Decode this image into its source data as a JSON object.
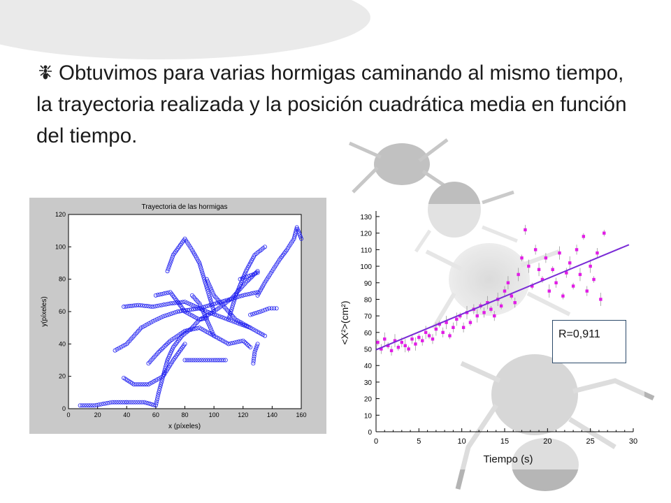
{
  "slide": {
    "headline": "Obtuvimos para varias hormigas caminando al mismo tiempo, la trayectoria realizada y la posición cuadrática media en función del tiempo.",
    "r_box": "R=0,911"
  },
  "colors": {
    "trajectory_markers": "#1f1ff0",
    "msd_markers": "#e21ce6",
    "fit_line": "#7a2bd6",
    "error_bars": "#9a9a9a",
    "traj_frame": "#c9c9c9"
  },
  "icons": [
    "ant-bullet-icon",
    "ant-background-icon"
  ],
  "chart_data": [
    {
      "type": "scatter",
      "title": "Trayectoria de las hormigas",
      "xlabel": "x (píxeles)",
      "ylabel": "y(píxeles)",
      "xlim": [
        0,
        160
      ],
      "ylim": [
        0,
        120
      ],
      "xticks": [
        0,
        20,
        40,
        60,
        80,
        100,
        120,
        140,
        160
      ],
      "yticks": [
        0,
        20,
        40,
        60,
        80,
        100,
        120
      ],
      "grid": false,
      "marker": "open-circle",
      "tracks": [
        {
          "x": [
            8,
            18,
            30,
            40
          ],
          "y": [
            2,
            2,
            4,
            4
          ]
        },
        {
          "x": [
            40,
            52,
            60,
            62,
            65,
            68,
            72,
            78,
            85,
            90,
            95
          ],
          "y": [
            4,
            4,
            2,
            10,
            20,
            30,
            38,
            45,
            50,
            55,
            56
          ]
        },
        {
          "x": [
            38,
            48,
            58,
            70,
            80,
            95,
            110,
            125
          ],
          "y": [
            63,
            64,
            63,
            65,
            66,
            60,
            55,
            50
          ]
        },
        {
          "x": [
            32,
            40,
            45,
            50,
            58,
            65,
            75,
            90,
            105,
            120,
            130
          ],
          "y": [
            36,
            40,
            45,
            50,
            54,
            57,
            60,
            62,
            66,
            70,
            72
          ]
        },
        {
          "x": [
            38,
            45,
            55,
            65,
            72,
            80
          ],
          "y": [
            19,
            15,
            15,
            20,
            30,
            40
          ]
        },
        {
          "x": [
            68,
            70,
            72,
            76,
            80,
            85,
            90,
            95,
            100
          ],
          "y": [
            85,
            90,
            95,
            100,
            105,
            98,
            90,
            75,
            60
          ]
        },
        {
          "x": [
            55,
            62,
            70,
            80,
            90,
            100,
            110,
            120,
            125
          ],
          "y": [
            28,
            35,
            42,
            48,
            50,
            45,
            40,
            42,
            38
          ]
        },
        {
          "x": [
            60,
            70,
            80,
            90,
            100,
            112,
            122,
            130
          ],
          "y": [
            70,
            72,
            60,
            55,
            60,
            68,
            78,
            85
          ]
        },
        {
          "x": [
            95,
            100,
            108,
            115,
            125,
            135
          ],
          "y": [
            80,
            70,
            62,
            55,
            50,
            45
          ]
        },
        {
          "x": [
            80,
            90,
            100,
            108
          ],
          "y": [
            30,
            30,
            30,
            30
          ]
        },
        {
          "x": [
            110,
            115,
            122,
            128,
            135
          ],
          "y": [
            55,
            70,
            85,
            95,
            100
          ]
        },
        {
          "x": [
            130,
            135,
            140,
            145,
            150,
            155,
            157,
            160
          ],
          "y": [
            70,
            78,
            85,
            92,
            98,
            105,
            112,
            105
          ]
        },
        {
          "x": [
            125,
            132,
            138,
            143
          ],
          "y": [
            58,
            60,
            62,
            62
          ]
        },
        {
          "x": [
            130,
            128,
            127
          ],
          "y": [
            40,
            35,
            28
          ]
        },
        {
          "x": [
            118,
            124,
            130
          ],
          "y": [
            80,
            82,
            84
          ]
        },
        {
          "x": [
            85,
            90,
            95,
            100
          ],
          "y": [
            70,
            65,
            55,
            45
          ]
        }
      ]
    },
    {
      "type": "scatter",
      "title": "",
      "xlabel": "Tiempo (s)",
      "ylabel": "<X²>(cm²)",
      "xlim": [
        0,
        30
      ],
      "ylim": [
        0,
        130
      ],
      "xticks": [
        0,
        5,
        10,
        15,
        20,
        25,
        30
      ],
      "yticks": [
        0,
        10,
        20,
        30,
        40,
        50,
        60,
        70,
        80,
        90,
        100,
        110,
        120,
        130
      ],
      "grid": false,
      "marker": "filled-square",
      "error_bars": true,
      "fit": {
        "type": "linear",
        "x": [
          0,
          29.5
        ],
        "y": [
          49.5,
          113
        ]
      },
      "points": {
        "x": [
          0.2,
          0.6,
          1.0,
          1.4,
          1.8,
          2.2,
          2.6,
          3.0,
          3.4,
          3.8,
          4.2,
          4.6,
          5.0,
          5.4,
          5.8,
          6.2,
          6.6,
          7.0,
          7.4,
          7.8,
          8.2,
          8.6,
          9.0,
          9.4,
          9.8,
          10.2,
          10.6,
          11.0,
          11.4,
          11.8,
          12.2,
          12.6,
          13.0,
          13.4,
          13.8,
          14.2,
          14.6,
          15.0,
          15.4,
          15.8,
          16.2,
          16.6,
          17.0,
          17.4,
          17.8,
          18.2,
          18.6,
          19.0,
          19.4,
          19.8,
          20.2,
          20.6,
          21.0,
          21.4,
          21.8,
          22.2,
          22.6,
          23.0,
          23.4,
          23.8,
          24.2,
          24.6,
          25.0,
          25.4,
          25.8,
          26.2,
          26.6
        ],
        "y": [
          54,
          50,
          56,
          52,
          49,
          55,
          51,
          54,
          52,
          50,
          56,
          53,
          57,
          55,
          60,
          58,
          56,
          62,
          65,
          60,
          66,
          58,
          63,
          68,
          70,
          63,
          72,
          66,
          74,
          70,
          76,
          72,
          78,
          74,
          70,
          80,
          76,
          85,
          90,
          82,
          78,
          95,
          105,
          122,
          100,
          88,
          110,
          98,
          92,
          105,
          85,
          98,
          90,
          108,
          82,
          96,
          102,
          88,
          110,
          95,
          118,
          85,
          100,
          92,
          108,
          80,
          120
        ]
      }
    }
  ]
}
